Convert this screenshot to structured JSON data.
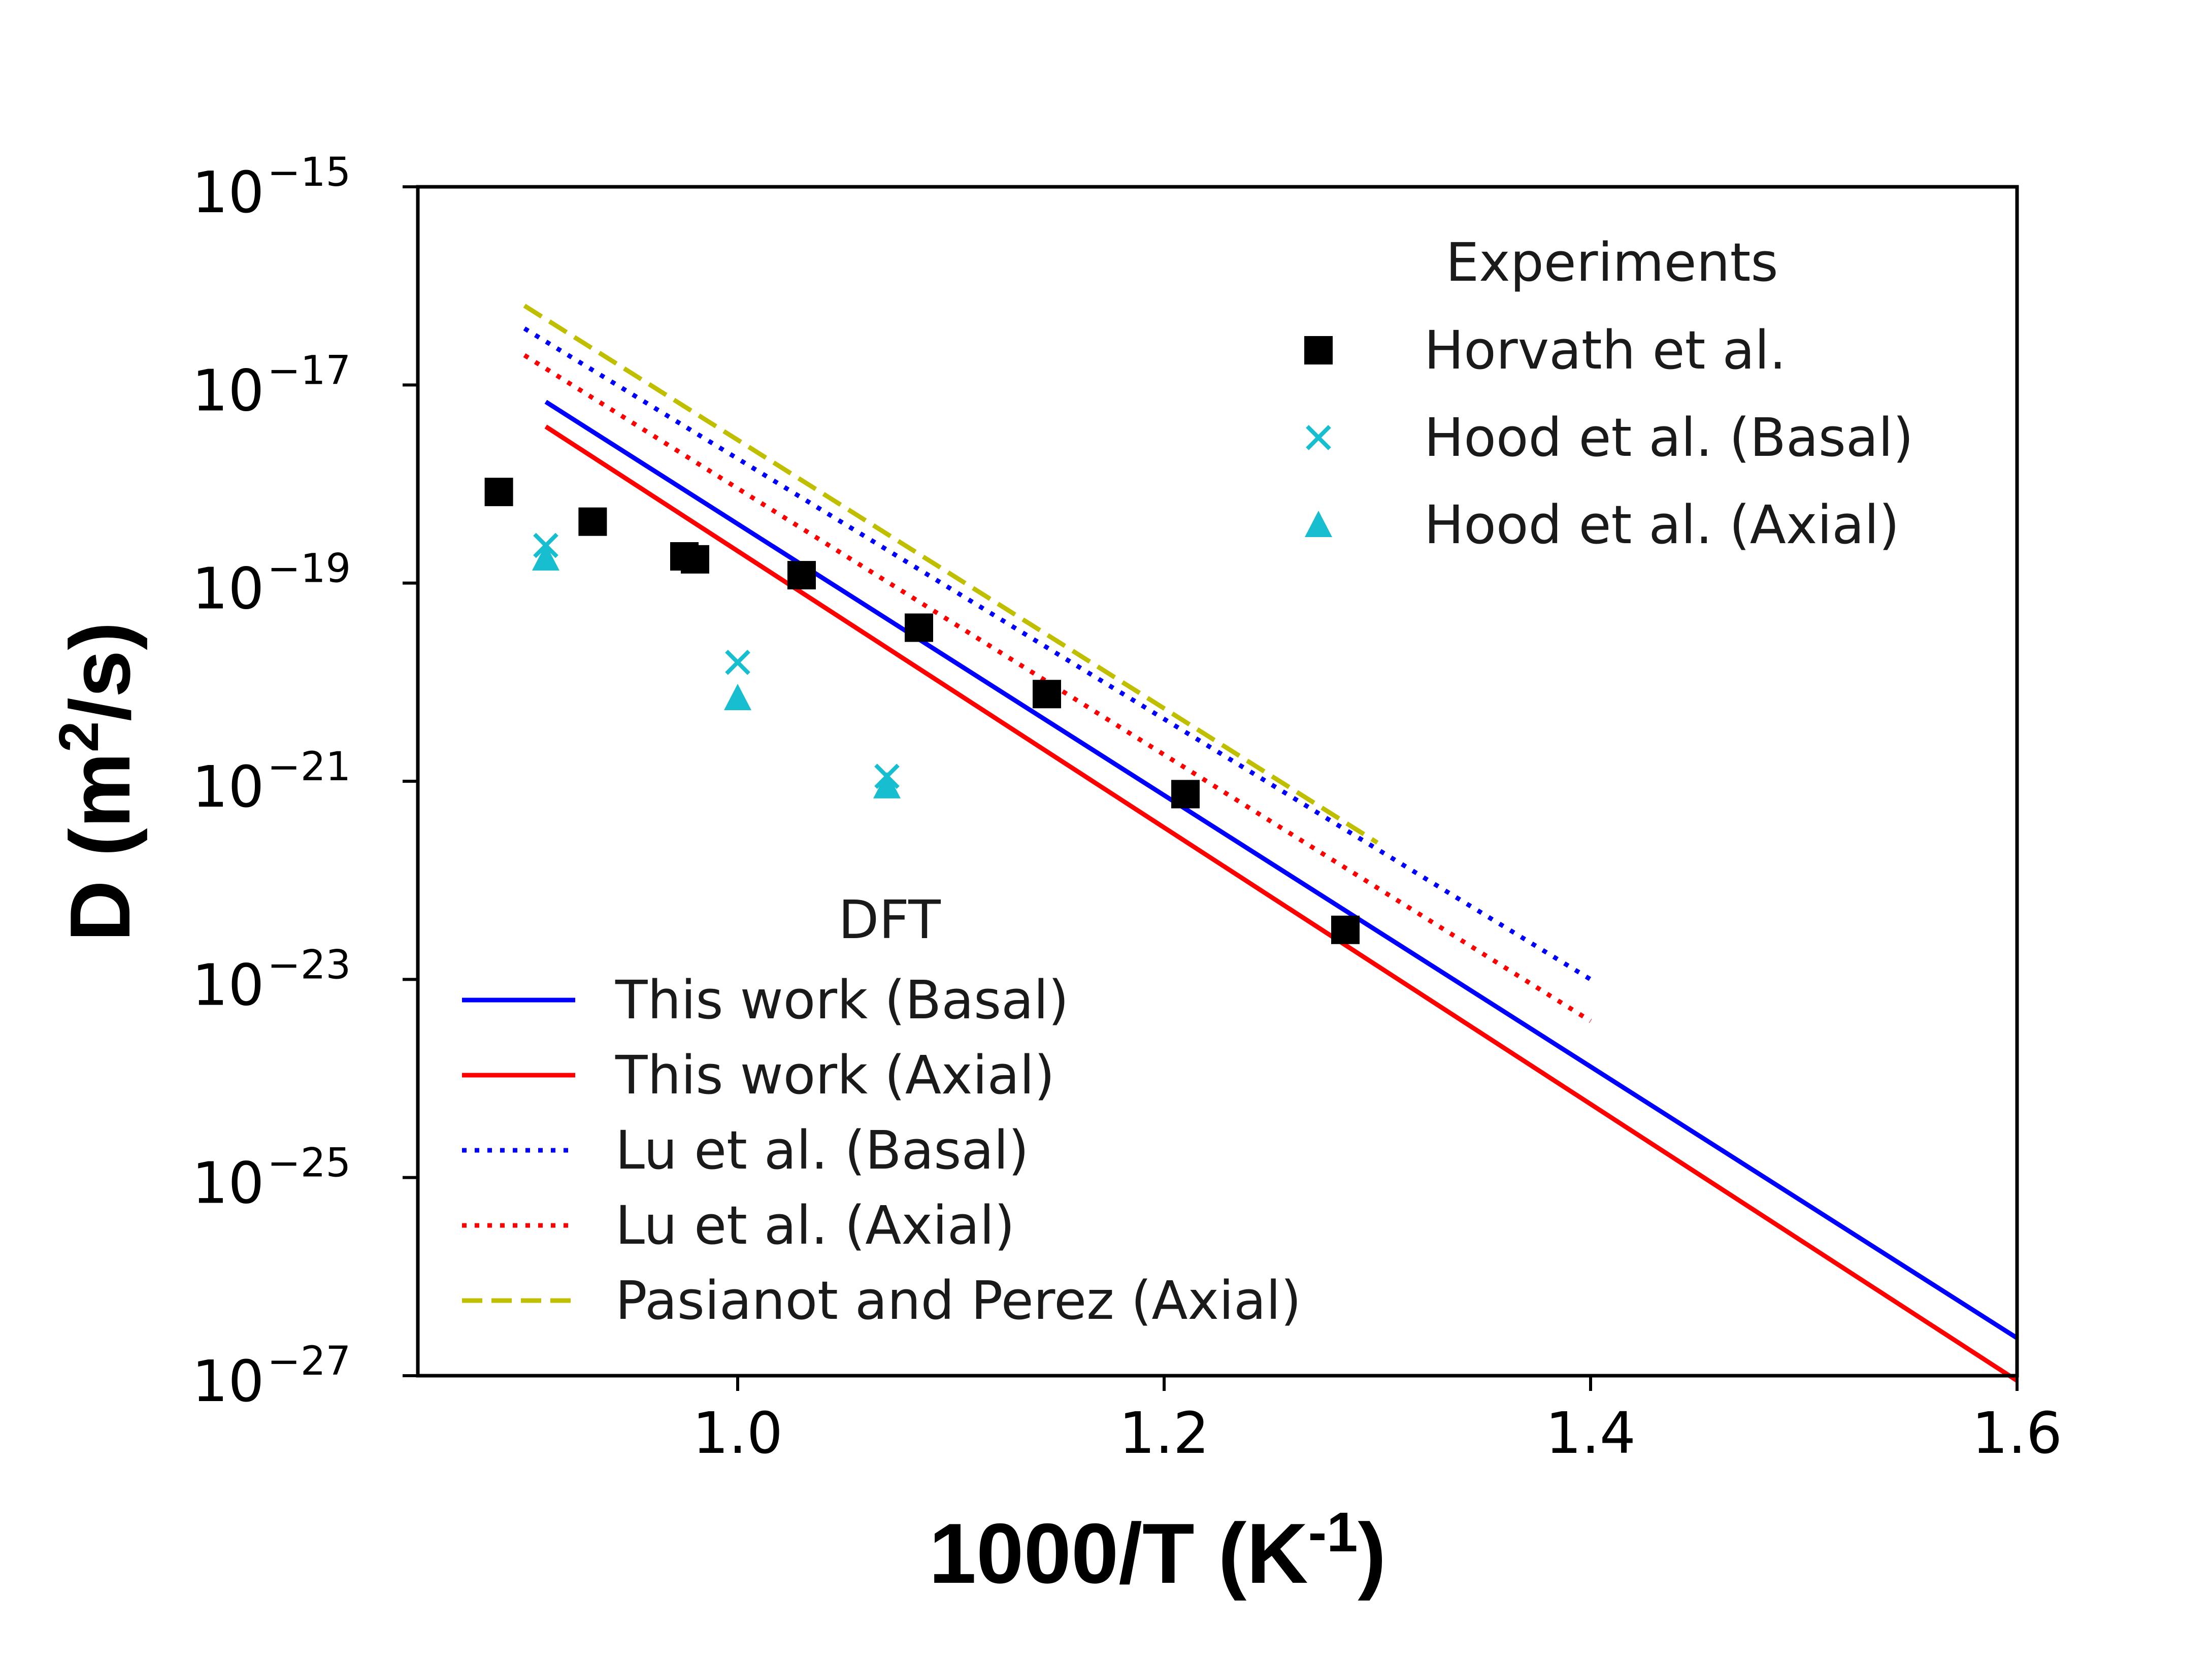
{
  "chart_data": {
    "type": "scatter",
    "xlabel": "1000/T (K",
    "xlabel_sup": "-1",
    "xlabel_tail": ")",
    "ylabel": "D (m",
    "ylabel_sup": "2",
    "ylabel_tail": "/s)",
    "xlim": [
      0.85,
      1.6
    ],
    "ylim_log10": [
      -27,
      -15
    ],
    "y_scale": "log",
    "x_ticks": [
      {
        "value": 1.0,
        "label": "1.0"
      },
      {
        "value": 1.2,
        "label": "1.2"
      },
      {
        "value": 1.4,
        "label": "1.4"
      },
      {
        "value": 1.6,
        "label": "1.6"
      }
    ],
    "y_ticks": [
      {
        "exp": -15,
        "base": "10",
        "sup": "−15"
      },
      {
        "exp": -17,
        "base": "10",
        "sup": "−17"
      },
      {
        "exp": -19,
        "base": "10",
        "sup": "−19"
      },
      {
        "exp": -21,
        "base": "10",
        "sup": "−21"
      },
      {
        "exp": -23,
        "base": "10",
        "sup": "−23"
      },
      {
        "exp": -25,
        "base": "10",
        "sup": "−25"
      },
      {
        "exp": -27,
        "base": "10",
        "sup": "−27"
      }
    ],
    "line_series": [
      {
        "name": "This work (Basal)",
        "color": "#0000ff",
        "style": "solid",
        "x": [
          0.91,
          1.6
        ],
        "log10_y": [
          -17.17,
          -26.62
        ]
      },
      {
        "name": "This work (Axial)",
        "color": "#ff0000",
        "style": "solid",
        "x": [
          0.91,
          1.6
        ],
        "log10_y": [
          -17.42,
          -27.05
        ]
      },
      {
        "name": "Lu et al. (Basal)",
        "color": "#0000ff",
        "style": "dotted",
        "x": [
          0.9,
          1.4
        ],
        "log10_y": [
          -16.43,
          -23.0
        ]
      },
      {
        "name": "Lu et al. (Axial)",
        "color": "#ff0000",
        "style": "dotted",
        "x": [
          0.9,
          1.4
        ],
        "log10_y": [
          -16.7,
          -23.42
        ]
      },
      {
        "name": "Pasianot and Perez (Axial)",
        "color": "#bfbf00",
        "style": "dashed",
        "x": [
          0.9,
          1.3
        ],
        "log10_y": [
          -16.2,
          -21.62
        ]
      }
    ],
    "scatter_series": [
      {
        "name": "Horvath et al.",
        "marker": "square",
        "color": "#000000",
        "points": [
          [
            0.888,
            -18.08
          ],
          [
            0.932,
            -18.38
          ],
          [
            0.975,
            -18.73
          ],
          [
            0.98,
            -18.76
          ],
          [
            1.03,
            -18.92
          ],
          [
            1.085,
            -19.45
          ],
          [
            1.145,
            -20.12
          ],
          [
            1.21,
            -21.13
          ],
          [
            1.285,
            -22.5
          ]
        ]
      },
      {
        "name": "Hood et al. (Basal)",
        "marker": "x",
        "color": "#17becf",
        "points": [
          [
            0.91,
            -18.62
          ],
          [
            1.0,
            -19.8
          ],
          [
            1.07,
            -20.95
          ]
        ]
      },
      {
        "name": "Hood et al. (Axial)",
        "marker": "triangle",
        "color": "#17becf",
        "points": [
          [
            0.91,
            -18.75
          ],
          [
            1.0,
            -20.16
          ],
          [
            1.07,
            -21.05
          ]
        ]
      }
    ],
    "legends": [
      {
        "title": "Experiments",
        "position": "upper right",
        "entries": [
          {
            "label": "Horvath et al.",
            "marker": "square",
            "color": "#000000"
          },
          {
            "label": "Hood et al. (Basal)",
            "marker": "x",
            "color": "#17becf"
          },
          {
            "label": "Hood et al. (Axial)",
            "marker": "triangle",
            "color": "#17becf"
          }
        ]
      },
      {
        "title": "DFT",
        "position": "lower left",
        "entries": [
          {
            "label": "This work (Basal)",
            "color": "#0000ff",
            "style": "solid"
          },
          {
            "label": "This work (Axial)",
            "color": "#ff0000",
            "style": "solid"
          },
          {
            "label": "Lu et al. (Basal)",
            "color": "#0000ff",
            "style": "dotted"
          },
          {
            "label": "Lu et al. (Axial)",
            "color": "#ff0000",
            "style": "dotted"
          },
          {
            "label": "Pasianot and Perez (Axial)",
            "color": "#bfbf00",
            "style": "dashed"
          }
        ]
      }
    ],
    "grid": false
  }
}
